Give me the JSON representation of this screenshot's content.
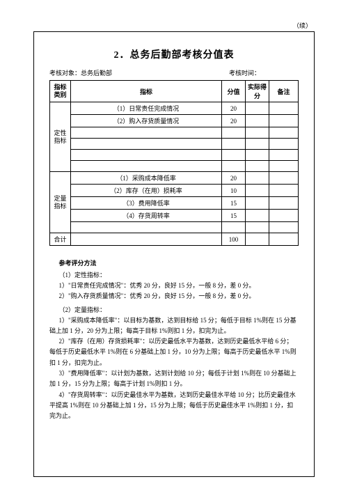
{
  "continued_label": "（续）",
  "title": "2．总务后勤部考核分值表",
  "meta_left": "考核对象：总务后勤部",
  "meta_right": "考核时间：",
  "headers": {
    "cat": "指标类别",
    "indicator": "指标",
    "score": "分值",
    "actual": "实际得分",
    "remark": "备注"
  },
  "cat1": "定性指标",
  "cat2": "定量指标",
  "total_label": "合计",
  "rows_cat1": [
    {
      "text": "（1）日常责任完成情况",
      "score": "20"
    },
    {
      "text": "（2）购入存货质量情况",
      "score": "20"
    },
    {
      "text": "",
      "score": ""
    },
    {
      "text": "",
      "score": ""
    },
    {
      "text": "",
      "score": ""
    },
    {
      "text": "",
      "score": ""
    }
  ],
  "rows_cat2": [
    {
      "text": "（1）采购成本降低率",
      "score": "20"
    },
    {
      "text": "（2）库存（在用）损耗率",
      "score": "10"
    },
    {
      "text": "（3）费用降低率",
      "score": "15"
    },
    {
      "text": "（4）存货周转率",
      "score": "15"
    },
    {
      "text": "",
      "score": ""
    }
  ],
  "total_score": "100",
  "method_title": "参考评分方法",
  "sub1": "（1）定性指标：",
  "sub1_1": "1）\"日常责任完成情况\"：优秀 20 分，良好 15 分，一般 8 分，差 0 分。",
  "sub1_2": "2）\"购入存货质量情况\"：优秀 20 分，良好 15 分，一般 8 分，差 0 分。",
  "sub2": "（2）定量指标：",
  "sub2_1": "1）\"采购成本降低率\"：以目标为基数，达到目标给 15 分；每低于目标 1%则在 15 分基础上加 1 分，20 分为上限；每高于目标 1%则扣 1 分，扣完为止。",
  "sub2_2": "2）\"库存（在用）存货损耗率\"：以历史最低水平为基数，达到历史最低水平给 6 分；每低于历史最低水平 1%则在 6 分基础上加 1 分，10 分为上限；每高于历史最低水平 1%则扣 1 分，扣完为止。",
  "sub2_3": "3）\"费用降低率\"：以计划为基数，达到计划给 10 分；每低于计划 1%则在 10 分基础上加 1 分，15 分为上限；每高于计划 1%则扣 1 分。",
  "sub2_4": "4）\"存货周转率\"：以历史最佳水平为基数，达到历史最佳水平给 10 分；比历史最佳水平提高 1%则在 10 分基础上加 1 分，15 分为上限；每低于历史最佳水平 1%则扣 1 分，扣完为止。"
}
